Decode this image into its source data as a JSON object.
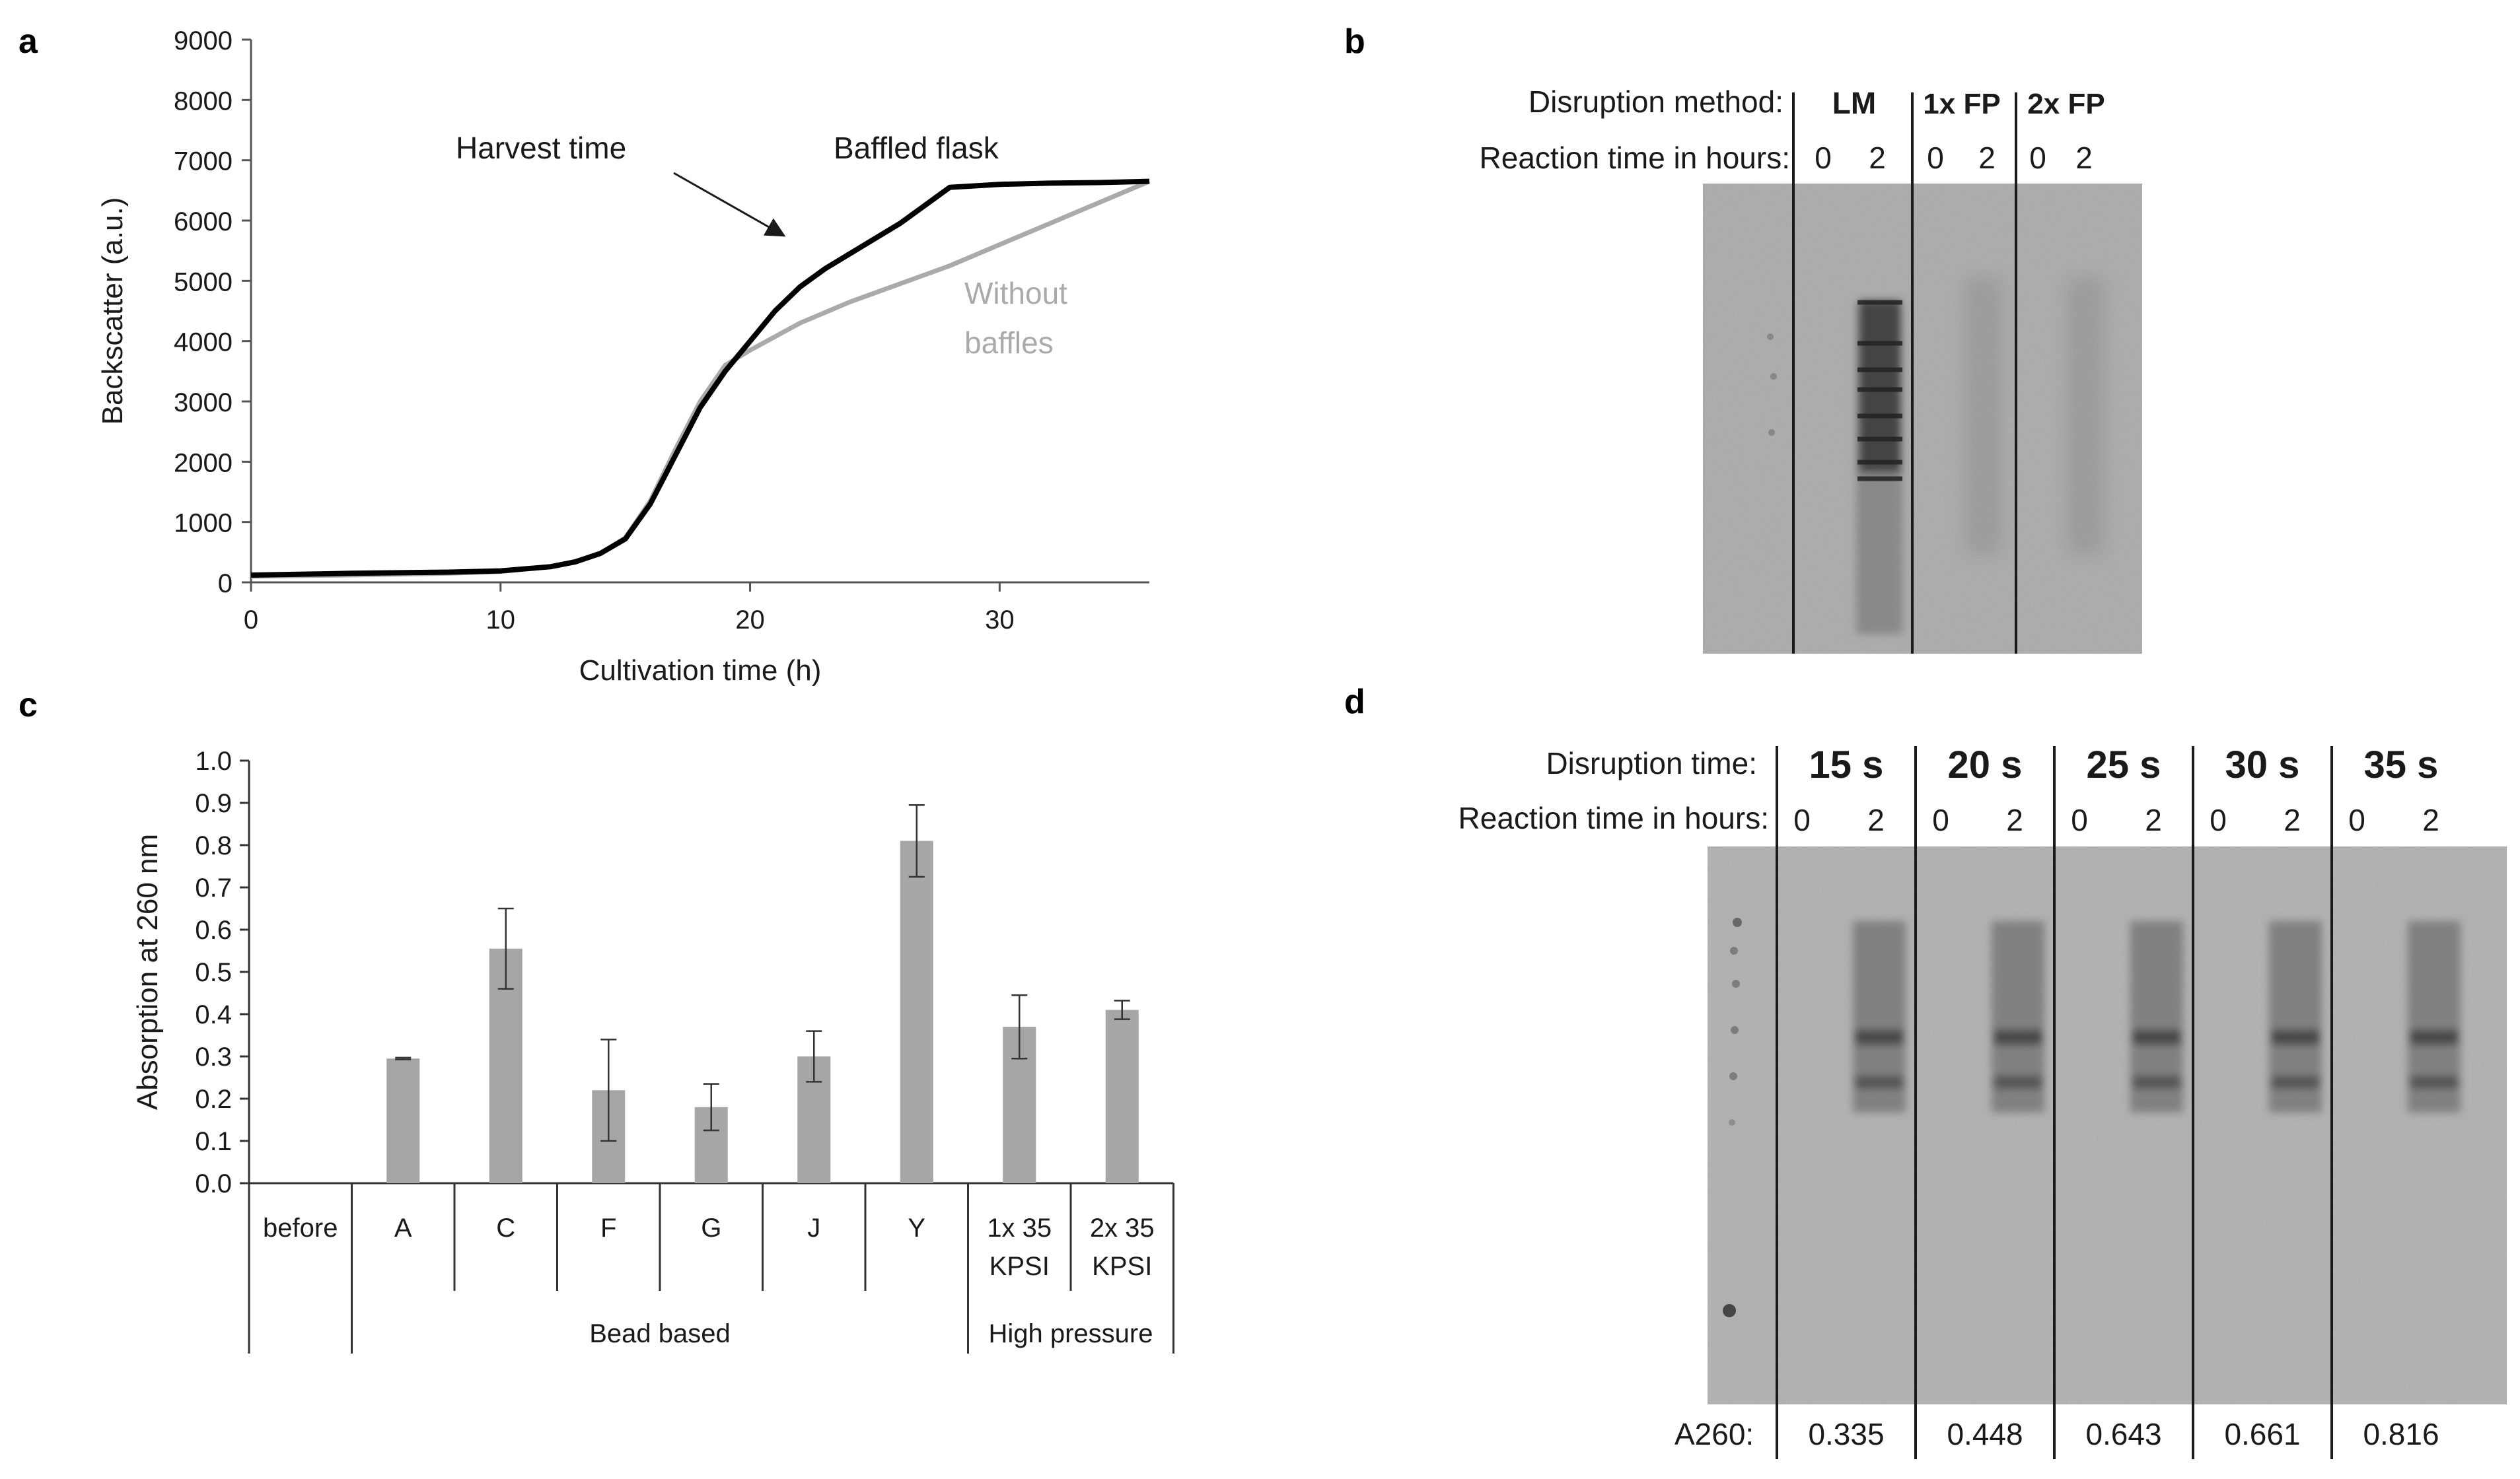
{
  "panels": {
    "a": "a",
    "b": "b",
    "c": "c",
    "d": "d"
  },
  "panel_b": {
    "method_label": "Disruption method:",
    "reaction_label": "Reaction time in hours:",
    "methods": [
      "LM",
      "1x FP",
      "2x FP"
    ],
    "times": [
      "0",
      "2"
    ]
  },
  "panel_d": {
    "disruption_label": "Disruption time:",
    "reaction_label": "Reaction time in hours:",
    "disruption_times": [
      "15 s",
      "20 s",
      "25 s",
      "30 s",
      "35 s"
    ],
    "times": [
      "0",
      "2"
    ],
    "a260_label": "A260:",
    "a260_values": [
      "0.335",
      "0.448",
      "0.643",
      "0.661",
      "0.816"
    ]
  },
  "chart_data": [
    {
      "type": "line",
      "title": "",
      "xlabel": "Cultivation time (h)",
      "ylabel": "Backscatter (a.u.)",
      "xlim": [
        0,
        36
      ],
      "ylim": [
        0,
        9000
      ],
      "xticks": [
        0,
        10,
        20,
        30
      ],
      "yticks": [
        0,
        1000,
        2000,
        3000,
        4000,
        5000,
        6000,
        7000,
        8000,
        9000
      ],
      "series": [
        {
          "name": "Baffled flask",
          "color": "#000000",
          "x": [
            0,
            4,
            8,
            10,
            12,
            13,
            14,
            15,
            16,
            17,
            18,
            19,
            20,
            21,
            22,
            23,
            24,
            26,
            28,
            30,
            32,
            34,
            36
          ],
          "y": [
            120,
            150,
            170,
            190,
            260,
            340,
            480,
            720,
            1300,
            2100,
            2900,
            3500,
            4000,
            4500,
            4900,
            5200,
            5450,
            5950,
            6550,
            6600,
            6620,
            6630,
            6650
          ]
        },
        {
          "name": "Without baffles",
          "color": "#aaaaaa",
          "x": [
            0,
            4,
            8,
            10,
            12,
            13,
            14,
            15,
            16,
            17,
            18,
            19,
            20,
            22,
            24,
            26,
            28,
            30,
            32,
            34,
            36
          ],
          "y": [
            100,
            120,
            150,
            180,
            260,
            350,
            480,
            740,
            1350,
            2200,
            3000,
            3600,
            3850,
            4300,
            4650,
            4950,
            5250,
            5600,
            5950,
            6300,
            6650
          ]
        }
      ],
      "annotations": [
        {
          "text": "Harvest time",
          "arrow_to": [
            21.5,
            5700
          ]
        },
        {
          "text": "Baffled flask"
        },
        {
          "text": "Without baffles",
          "lines": [
            "Without",
            "baffles"
          ]
        }
      ]
    },
    {
      "type": "bar",
      "title": "",
      "xlabel": "",
      "ylabel": "Absorption at 260 nm",
      "ylim": [
        0,
        1.0
      ],
      "yticks": [
        "0.0",
        "0.1",
        "0.2",
        "0.3",
        "0.4",
        "0.5",
        "0.6",
        "0.7",
        "0.8",
        "0.9",
        "1.0"
      ],
      "bar_color": "#a6a6a6",
      "categories": [
        "before",
        "A",
        "C",
        "F",
        "G",
        "J",
        "Y",
        "1x 35 KPSI",
        "2x 35 KPSI"
      ],
      "category_lines": [
        [
          "before"
        ],
        [
          "A"
        ],
        [
          "C"
        ],
        [
          "F"
        ],
        [
          "G"
        ],
        [
          "J"
        ],
        [
          "Y"
        ],
        [
          "1x 35",
          "KPSI"
        ],
        [
          "2x 35",
          "KPSI"
        ]
      ],
      "values": [
        0,
        0.295,
        0.555,
        0.22,
        0.18,
        0.3,
        0.81,
        0.37,
        0.41
      ],
      "errors": [
        0,
        0.002,
        0.095,
        0.12,
        0.055,
        0.06,
        0.085,
        0.075,
        0.022
      ],
      "groups": [
        {
          "label": "Bead based",
          "from": 1,
          "to": 6
        },
        {
          "label": "High pressure",
          "from": 7,
          "to": 8
        }
      ]
    }
  ]
}
